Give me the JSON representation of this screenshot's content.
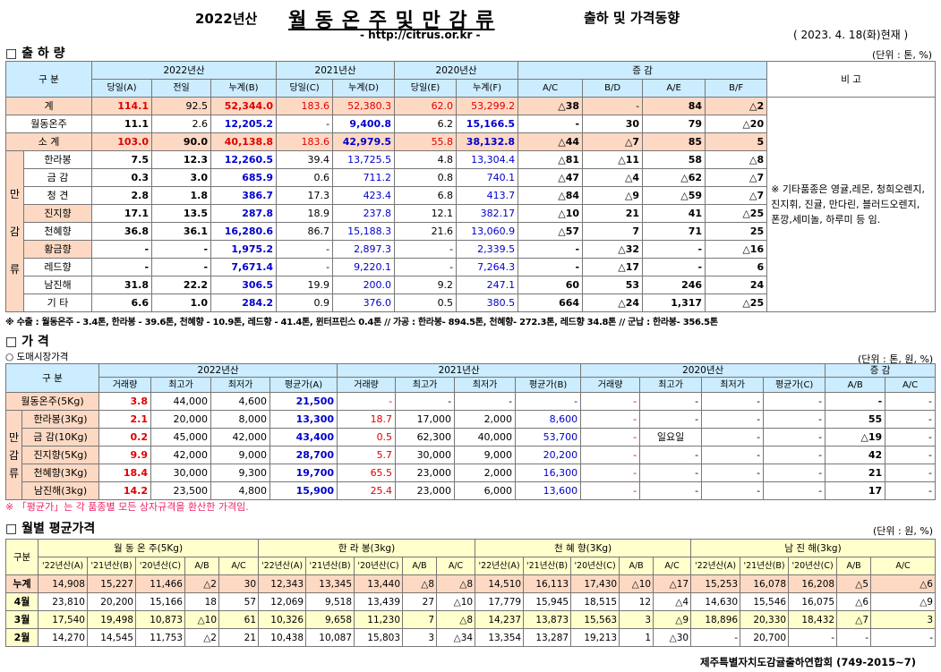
{
  "header": {
    "year": "2022년산",
    "title": "월 동 온 주 및 만 감 류",
    "subtitle": "출하 및 가격동향",
    "url": "- http://citrus.or.kr -",
    "date": "( 2023.  4.  18(화)현재 )"
  },
  "sec1": {
    "title": "□ 출 하 량",
    "unit": "(단위 : 톤, %)",
    "h_gubun": "구   분",
    "h_2022": "2022년산",
    "h_2021": "2021년산",
    "h_2020": "2020년산",
    "h_change": "증    감",
    "h_note": "비 고",
    "sub": [
      "당일(A)",
      "전일",
      "누계(B)",
      "당일(C)",
      "누계(D)",
      "당일(E)",
      "누계(F)",
      "A/C",
      "B/D",
      "A/E",
      "B/F"
    ],
    "rows": [
      {
        "name": "계",
        "v": [
          "114.1",
          "92.5",
          "52,344.0",
          "183.6",
          "52,380.3",
          "62.0",
          "53,299.2",
          "△38",
          "-",
          "84",
          "△2"
        ]
      },
      {
        "name": "월동온주",
        "v": [
          "11.1",
          "2.6",
          "12,205.2",
          "-",
          "9,400.8",
          "6.2",
          "15,166.5",
          "-",
          "30",
          "79",
          "△20"
        ]
      },
      {
        "name": "소   계",
        "v": [
          "103.0",
          "90.0",
          "40,138.8",
          "183.6",
          "42,979.5",
          "55.8",
          "38,132.8",
          "△44",
          "△7",
          "85",
          "5"
        ]
      },
      {
        "name": "한라봉",
        "v": [
          "7.5",
          "12.3",
          "12,260.5",
          "39.4",
          "13,725.5",
          "4.8",
          "13,304.4",
          "△81",
          "△11",
          "58",
          "△8"
        ]
      },
      {
        "name": "금 감",
        "v": [
          "0.3",
          "3.0",
          "685.9",
          "0.6",
          "711.2",
          "0.8",
          "740.1",
          "△47",
          "△4",
          "△62",
          "△7"
        ]
      },
      {
        "name": "청 견",
        "v": [
          "2.8",
          "1.8",
          "386.7",
          "17.3",
          "423.4",
          "6.8",
          "413.7",
          "△84",
          "△9",
          "△59",
          "△7"
        ]
      },
      {
        "name": "진지향",
        "v": [
          "17.1",
          "13.5",
          "287.8",
          "18.9",
          "237.8",
          "12.1",
          "382.17",
          "△10",
          "21",
          "41",
          "△25"
        ]
      },
      {
        "name": "천혜향",
        "v": [
          "36.8",
          "36.1",
          "16,280.6",
          "86.7",
          "15,188.3",
          "21.6",
          "13,060.9",
          "△57",
          "7",
          "71",
          "25"
        ]
      },
      {
        "name": "황금향",
        "v": [
          "-",
          "-",
          "1,975.2",
          "-",
          "2,897.3",
          "-",
          "2,339.5",
          "-",
          "△32",
          "-",
          "△16"
        ]
      },
      {
        "name": "레드향",
        "v": [
          "-",
          "-",
          "7,671.4",
          "-",
          "9,220.1",
          "-",
          "7,264.3",
          "-",
          "△17",
          "-",
          "6"
        ]
      },
      {
        "name": "남진해",
        "v": [
          "31.8",
          "22.2",
          "306.5",
          "19.9",
          "200.0",
          "9.2",
          "247.1",
          "60",
          "53",
          "246",
          "24"
        ]
      },
      {
        "name": "기   타",
        "v": [
          "6.6",
          "1.0",
          "284.2",
          "0.9",
          "376.0",
          "0.5",
          "380.5",
          "664",
          "△24",
          "1,317",
          "△25"
        ]
      }
    ],
    "side": [
      "만",
      "감",
      "류"
    ],
    "note": "※ 기타품종은 영귤,레몬, 청희오렌지, 진지휘, 진귤, 만다린, 블러드오렌지, 폰깡,세미놀, 하루미 등 임.",
    "footnote": "※ 수출 : 월동온주 - 3.4톤, 한라봉 - 39.6톤, 천혜향 - 10.9톤, 레드향 - 41.4톤, 윈터프린스 0.4톤 //  가공 :  한라봉- 894.5톤, 천혜향- 272.3톤, 레드향 34.8톤  //  군납 : 한라봉- 356.5톤"
  },
  "sec2": {
    "title": "□ 가       격",
    "sub_title": "○ 도매시장가격",
    "unit": "(단위 : 톤, 원, %)",
    "h_gubun": "구   분",
    "h_2022": "2022년산",
    "h_2021": "2021년산",
    "h_2020": "2020년산",
    "h_change": "증    감",
    "sub": [
      "거래량",
      "최고가",
      "최저가",
      "평균가(A)",
      "거래량",
      "최고가",
      "최저가",
      "평균가(B)",
      "거래량",
      "최고가",
      "최저가",
      "평균가(C)",
      "A/B",
      "A/C"
    ],
    "rows": [
      {
        "name": "월동온주(5Kg)",
        "v": [
          "3.8",
          "44,000",
          "4,600",
          "21,500",
          "-",
          "-",
          "-",
          "-",
          "-",
          "-",
          "-",
          "-",
          "-",
          "-"
        ]
      },
      {
        "name": "한라봉(3Kg)",
        "v": [
          "2.1",
          "20,000",
          "8,000",
          "13,300",
          "18.7",
          "17,000",
          "2,000",
          "8,600",
          "-",
          "-",
          "-",
          "-",
          "55",
          "-"
        ]
      },
      {
        "name": "금 감(10Kg)",
        "v": [
          "0.2",
          "45,000",
          "42,000",
          "43,400",
          "0.5",
          "62,300",
          "40,000",
          "53,700",
          "-",
          "일요일",
          "-",
          "-",
          "△19",
          "-"
        ]
      },
      {
        "name": "진지향(5Kg)",
        "v": [
          "9.9",
          "42,000",
          "9,000",
          "28,700",
          "5.7",
          "30,000",
          "9,000",
          "20,200",
          "-",
          "-",
          "-",
          "-",
          "42",
          "-"
        ]
      },
      {
        "name": "천혜향(3Kg)",
        "v": [
          "18.4",
          "30,000",
          "9,300",
          "19,700",
          "65.5",
          "23,000",
          "2,000",
          "16,300",
          "-",
          "-",
          "-",
          "-",
          "21",
          "-"
        ]
      },
      {
        "name": "남진해(3kg)",
        "v": [
          "14.2",
          "23,500",
          "4,800",
          "15,900",
          "25.4",
          "23,000",
          "6,000",
          "13,600",
          "-",
          "-",
          "-",
          "-",
          "17",
          "-"
        ]
      }
    ],
    "side": [
      "만",
      "감",
      "류"
    ],
    "footnote": "※ 「평균가」는 각 품종별 모든 상자규격을 환산한 가격임."
  },
  "sec3": {
    "title": "□ 월별 평균가격",
    "unit": "(단위 : 원, %)",
    "h_gubun": "구분",
    "groups": [
      "월 동 온 주(5Kg)",
      "한  라  봉(3kg)",
      "천 혜 향(3Kg)",
      "남 진 해(3kg)"
    ],
    "sub": [
      "'22년산(A)",
      "'21년산(B)",
      "'20년산(C)",
      "A/B",
      "A/C"
    ],
    "rows": [
      {
        "name": "누계",
        "v": [
          "14,908",
          "15,227",
          "11,466",
          "△2",
          "30",
          "12,343",
          "13,345",
          "13,440",
          "△8",
          "△8",
          "14,510",
          "16,113",
          "17,430",
          "△10",
          "△17",
          "15,253",
          "16,078",
          "16,208",
          "△5",
          "△6"
        ]
      },
      {
        "name": "4월",
        "v": [
          "23,810",
          "20,200",
          "15,166",
          "18",
          "57",
          "12,069",
          "9,518",
          "13,439",
          "27",
          "△10",
          "17,779",
          "15,945",
          "18,515",
          "12",
          "△4",
          "14,630",
          "15,546",
          "16,075",
          "△6",
          "△9"
        ]
      },
      {
        "name": "3월",
        "v": [
          "17,540",
          "19,498",
          "10,873",
          "△10",
          "61",
          "10,326",
          "9,658",
          "11,230",
          "7",
          "△8",
          "14,237",
          "13,873",
          "15,563",
          "3",
          "△9",
          "18,896",
          "20,330",
          "18,432",
          "△7",
          "3"
        ]
      },
      {
        "name": "2월",
        "v": [
          "14,270",
          "14,545",
          "11,753",
          "△2",
          "21",
          "10,438",
          "10,087",
          "15,803",
          "3",
          "△34",
          "13,354",
          "13,287",
          "19,213",
          "1",
          "△30",
          "-",
          "20,700",
          "-",
          "-",
          "-"
        ]
      }
    ]
  },
  "footer": "제주특별자치도감귤출하연합회  (749-2015~7)"
}
